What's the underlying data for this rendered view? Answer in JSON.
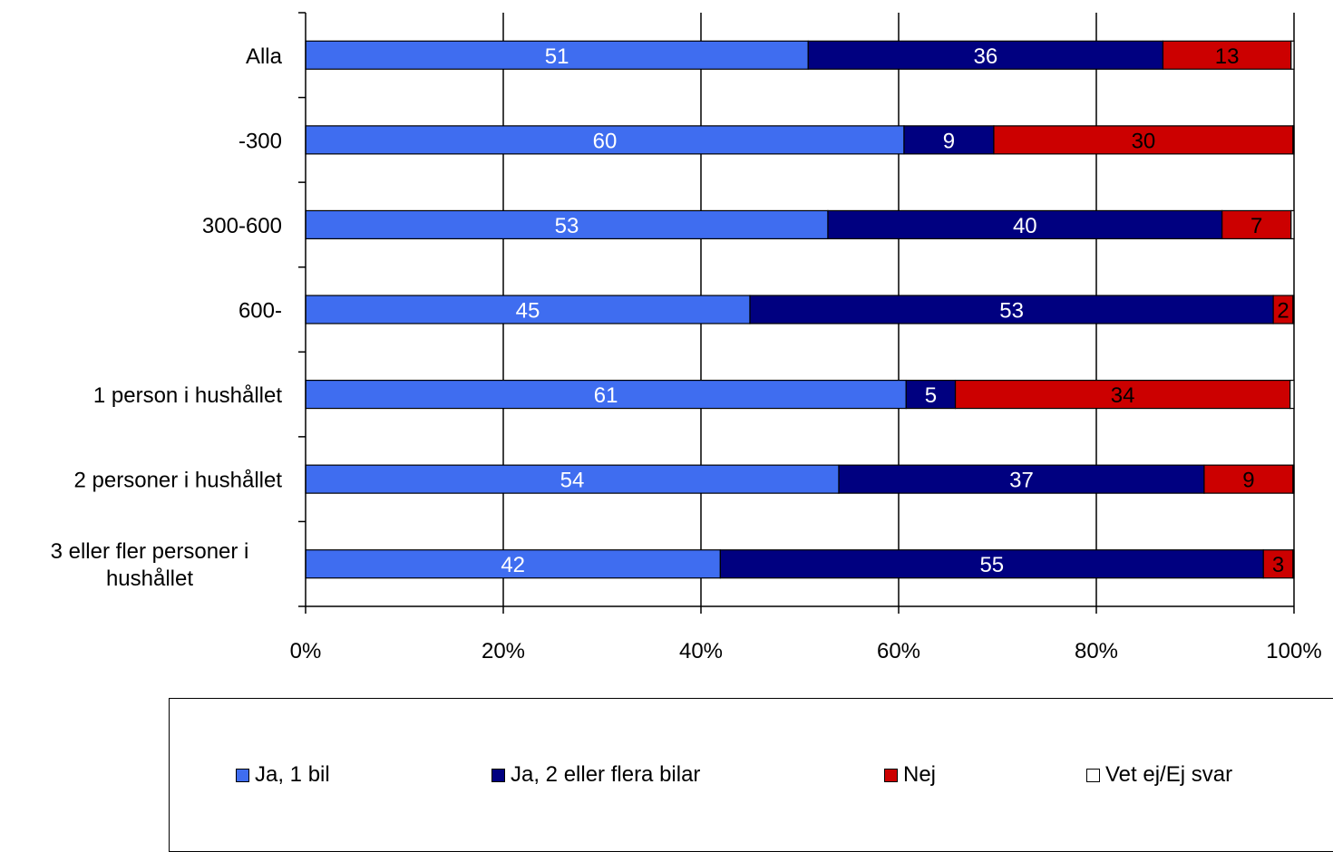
{
  "chart_data": {
    "type": "bar",
    "orientation": "horizontal",
    "stacked": "percent",
    "categories": [
      "Alla",
      "-300",
      "300-600",
      "600-",
      "1 person i hushållet",
      "2 personer i hushållet",
      "3 eller fler personer i hushållet"
    ],
    "series": [
      {
        "name": "Ja, 1 bil",
        "color": "#3f6df0",
        "values": [
          51,
          60,
          53,
          45,
          61,
          54,
          42
        ]
      },
      {
        "name": "Ja, 2 eller flera bilar",
        "color": "#000080",
        "values": [
          36,
          9,
          40,
          53,
          5,
          37,
          55
        ]
      },
      {
        "name": "Nej",
        "color": "#cc0000",
        "values": [
          13,
          30,
          7,
          2,
          34,
          9,
          3
        ]
      },
      {
        "name": "Vet ej/Ej svar",
        "color": "#ffffff",
        "values": [
          0.3,
          0.1,
          0.3,
          0.1,
          0.4,
          0.1,
          0.1
        ]
      }
    ],
    "xlim": [
      0,
      100
    ],
    "x_ticks": [
      "0%",
      "20%",
      "40%",
      "60%",
      "80%",
      "100%"
    ],
    "title": "",
    "xlabel": "",
    "ylabel": "",
    "grid": true,
    "legend_position": "bottom"
  }
}
